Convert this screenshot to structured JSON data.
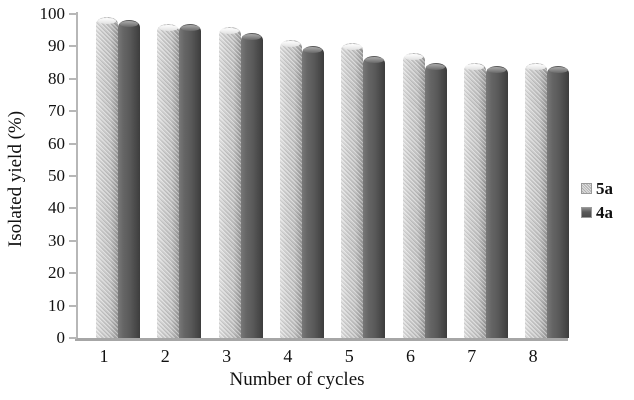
{
  "chart_data": {
    "type": "bar",
    "title": "",
    "xlabel": "Number of cycles",
    "ylabel": "Isolated yield (%)",
    "ylim": [
      0,
      100
    ],
    "yticks": [
      0,
      10,
      20,
      30,
      40,
      50,
      60,
      70,
      80,
      90,
      100
    ],
    "categories": [
      "1",
      "2",
      "3",
      "4",
      "5",
      "6",
      "7",
      "8"
    ],
    "series": [
      {
        "name": "5a",
        "color": "#c9c9c9",
        "values": [
          99,
          97,
          96,
          92,
          91,
          88,
          85,
          85
        ]
      },
      {
        "name": "4a",
        "color": "#595959",
        "values": [
          98,
          97,
          94,
          90,
          87,
          85,
          84,
          84
        ]
      }
    ],
    "legend_position": "right",
    "grid": false,
    "bar_style": "3d-cylinder",
    "background_color": "#ffffff"
  }
}
